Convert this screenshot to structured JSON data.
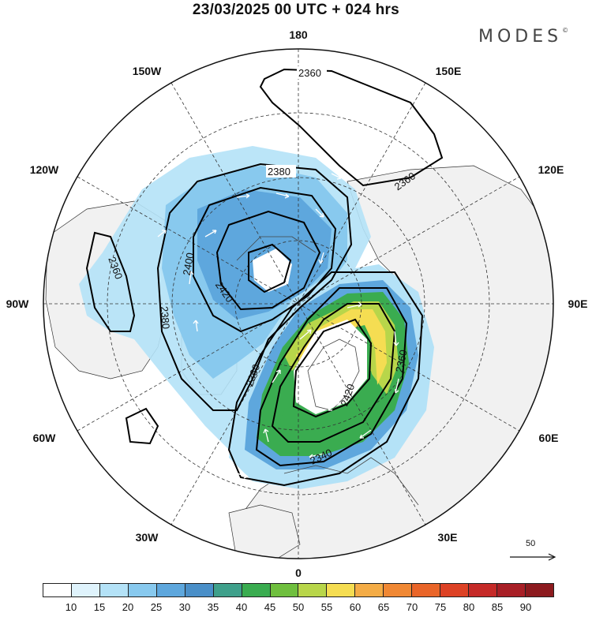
{
  "title": "23/03/2025  00 UTC  + 024 hrs",
  "brand": "MODES",
  "brand_mark": "©",
  "longitude_labels": {
    "top": "180",
    "left150": "150W",
    "right150": "150E",
    "left120": "120W",
    "right120": "120E",
    "left90": "90W",
    "right90": "90E",
    "left60": "60W",
    "right60": "60E",
    "left30": "30W",
    "right30": "30E",
    "bottom": "0"
  },
  "contour_labels": [
    "2360",
    "2380",
    "2360",
    "2400",
    "2420",
    "2380",
    "2360",
    "2360",
    "2420",
    "2360",
    "2340"
  ],
  "reference_vector": {
    "value": "50"
  },
  "colorbar": {
    "labels": [
      "10",
      "15",
      "20",
      "25",
      "30",
      "35",
      "40",
      "45",
      "50",
      "55",
      "60",
      "65",
      "70",
      "75",
      "80",
      "85",
      "90"
    ],
    "colors": [
      "#ffffff",
      "#dff3fc",
      "#b4e2f7",
      "#88c9ee",
      "#5ea7dd",
      "#4a8fc8",
      "#3fa08b",
      "#3aac50",
      "#6fbf3e",
      "#b8d64a",
      "#f5dd52",
      "#f4ac46",
      "#f08834",
      "#e96529",
      "#dd4225",
      "#c52a28",
      "#a81f26",
      "#8c1a1e"
    ]
  }
}
